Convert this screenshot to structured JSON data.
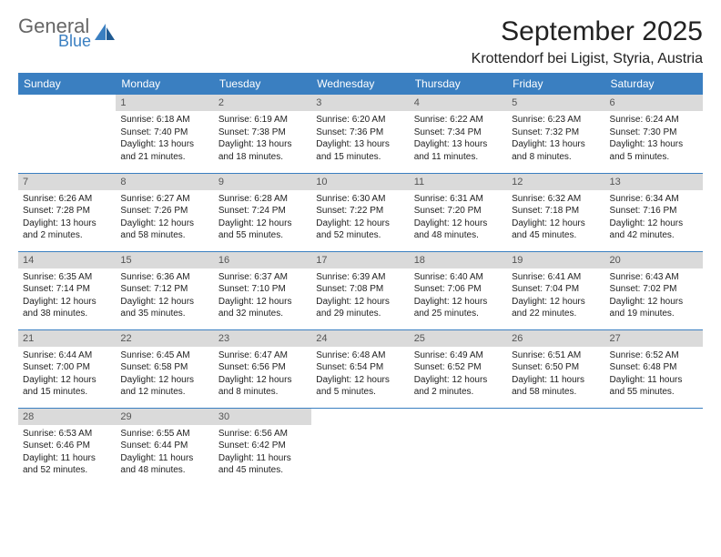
{
  "brand": {
    "text1": "General",
    "text2": "Blue"
  },
  "title": "September 2025",
  "location": "Krottendorf bei Ligist, Styria, Austria",
  "headers": [
    "Sunday",
    "Monday",
    "Tuesday",
    "Wednesday",
    "Thursday",
    "Friday",
    "Saturday"
  ],
  "colors": {
    "header_bg": "#3a7fc1",
    "header_text": "#ffffff",
    "daynum_bg": "#dadada",
    "daynum_text": "#555555",
    "border": "#3a7fc1",
    "title_color": "#222222",
    "brand_gray": "#666666",
    "brand_blue": "#3a7fc1"
  },
  "fonts": {
    "body_size": 10,
    "header_size": 12,
    "title_size": 30,
    "location_size": 16
  },
  "weeks": [
    [
      null,
      {
        "n": "1",
        "sunrise": "Sunrise: 6:18 AM",
        "sunset": "Sunset: 7:40 PM",
        "daylight": "Daylight: 13 hours and 21 minutes."
      },
      {
        "n": "2",
        "sunrise": "Sunrise: 6:19 AM",
        "sunset": "Sunset: 7:38 PM",
        "daylight": "Daylight: 13 hours and 18 minutes."
      },
      {
        "n": "3",
        "sunrise": "Sunrise: 6:20 AM",
        "sunset": "Sunset: 7:36 PM",
        "daylight": "Daylight: 13 hours and 15 minutes."
      },
      {
        "n": "4",
        "sunrise": "Sunrise: 6:22 AM",
        "sunset": "Sunset: 7:34 PM",
        "daylight": "Daylight: 13 hours and 11 minutes."
      },
      {
        "n": "5",
        "sunrise": "Sunrise: 6:23 AM",
        "sunset": "Sunset: 7:32 PM",
        "daylight": "Daylight: 13 hours and 8 minutes."
      },
      {
        "n": "6",
        "sunrise": "Sunrise: 6:24 AM",
        "sunset": "Sunset: 7:30 PM",
        "daylight": "Daylight: 13 hours and 5 minutes."
      }
    ],
    [
      {
        "n": "7",
        "sunrise": "Sunrise: 6:26 AM",
        "sunset": "Sunset: 7:28 PM",
        "daylight": "Daylight: 13 hours and 2 minutes."
      },
      {
        "n": "8",
        "sunrise": "Sunrise: 6:27 AM",
        "sunset": "Sunset: 7:26 PM",
        "daylight": "Daylight: 12 hours and 58 minutes."
      },
      {
        "n": "9",
        "sunrise": "Sunrise: 6:28 AM",
        "sunset": "Sunset: 7:24 PM",
        "daylight": "Daylight: 12 hours and 55 minutes."
      },
      {
        "n": "10",
        "sunrise": "Sunrise: 6:30 AM",
        "sunset": "Sunset: 7:22 PM",
        "daylight": "Daylight: 12 hours and 52 minutes."
      },
      {
        "n": "11",
        "sunrise": "Sunrise: 6:31 AM",
        "sunset": "Sunset: 7:20 PM",
        "daylight": "Daylight: 12 hours and 48 minutes."
      },
      {
        "n": "12",
        "sunrise": "Sunrise: 6:32 AM",
        "sunset": "Sunset: 7:18 PM",
        "daylight": "Daylight: 12 hours and 45 minutes."
      },
      {
        "n": "13",
        "sunrise": "Sunrise: 6:34 AM",
        "sunset": "Sunset: 7:16 PM",
        "daylight": "Daylight: 12 hours and 42 minutes."
      }
    ],
    [
      {
        "n": "14",
        "sunrise": "Sunrise: 6:35 AM",
        "sunset": "Sunset: 7:14 PM",
        "daylight": "Daylight: 12 hours and 38 minutes."
      },
      {
        "n": "15",
        "sunrise": "Sunrise: 6:36 AM",
        "sunset": "Sunset: 7:12 PM",
        "daylight": "Daylight: 12 hours and 35 minutes."
      },
      {
        "n": "16",
        "sunrise": "Sunrise: 6:37 AM",
        "sunset": "Sunset: 7:10 PM",
        "daylight": "Daylight: 12 hours and 32 minutes."
      },
      {
        "n": "17",
        "sunrise": "Sunrise: 6:39 AM",
        "sunset": "Sunset: 7:08 PM",
        "daylight": "Daylight: 12 hours and 29 minutes."
      },
      {
        "n": "18",
        "sunrise": "Sunrise: 6:40 AM",
        "sunset": "Sunset: 7:06 PM",
        "daylight": "Daylight: 12 hours and 25 minutes."
      },
      {
        "n": "19",
        "sunrise": "Sunrise: 6:41 AM",
        "sunset": "Sunset: 7:04 PM",
        "daylight": "Daylight: 12 hours and 22 minutes."
      },
      {
        "n": "20",
        "sunrise": "Sunrise: 6:43 AM",
        "sunset": "Sunset: 7:02 PM",
        "daylight": "Daylight: 12 hours and 19 minutes."
      }
    ],
    [
      {
        "n": "21",
        "sunrise": "Sunrise: 6:44 AM",
        "sunset": "Sunset: 7:00 PM",
        "daylight": "Daylight: 12 hours and 15 minutes."
      },
      {
        "n": "22",
        "sunrise": "Sunrise: 6:45 AM",
        "sunset": "Sunset: 6:58 PM",
        "daylight": "Daylight: 12 hours and 12 minutes."
      },
      {
        "n": "23",
        "sunrise": "Sunrise: 6:47 AM",
        "sunset": "Sunset: 6:56 PM",
        "daylight": "Daylight: 12 hours and 8 minutes."
      },
      {
        "n": "24",
        "sunrise": "Sunrise: 6:48 AM",
        "sunset": "Sunset: 6:54 PM",
        "daylight": "Daylight: 12 hours and 5 minutes."
      },
      {
        "n": "25",
        "sunrise": "Sunrise: 6:49 AM",
        "sunset": "Sunset: 6:52 PM",
        "daylight": "Daylight: 12 hours and 2 minutes."
      },
      {
        "n": "26",
        "sunrise": "Sunrise: 6:51 AM",
        "sunset": "Sunset: 6:50 PM",
        "daylight": "Daylight: 11 hours and 58 minutes."
      },
      {
        "n": "27",
        "sunrise": "Sunrise: 6:52 AM",
        "sunset": "Sunset: 6:48 PM",
        "daylight": "Daylight: 11 hours and 55 minutes."
      }
    ],
    [
      {
        "n": "28",
        "sunrise": "Sunrise: 6:53 AM",
        "sunset": "Sunset: 6:46 PM",
        "daylight": "Daylight: 11 hours and 52 minutes."
      },
      {
        "n": "29",
        "sunrise": "Sunrise: 6:55 AM",
        "sunset": "Sunset: 6:44 PM",
        "daylight": "Daylight: 11 hours and 48 minutes."
      },
      {
        "n": "30",
        "sunrise": "Sunrise: 6:56 AM",
        "sunset": "Sunset: 6:42 PM",
        "daylight": "Daylight: 11 hours and 45 minutes."
      },
      null,
      null,
      null,
      null
    ]
  ]
}
